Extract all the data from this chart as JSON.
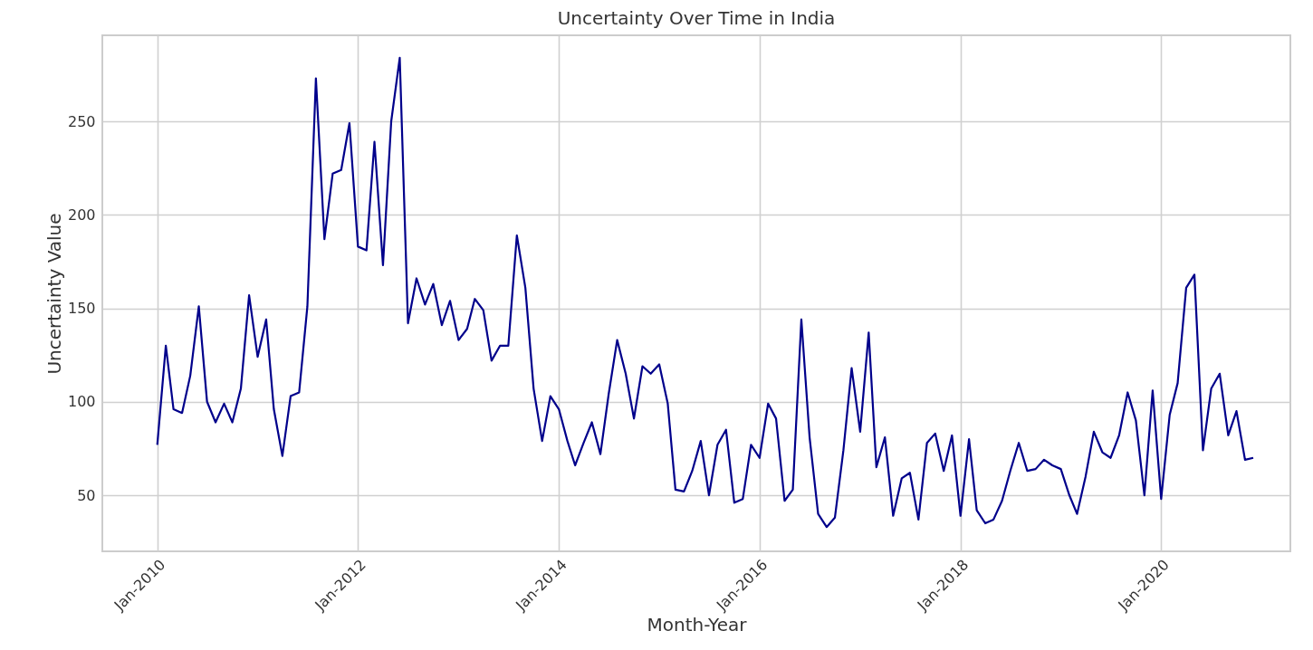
{
  "chart_data": {
    "type": "line",
    "title": "Uncertainty Over Time in India",
    "xlabel": "Month-Year",
    "ylabel": "Uncertainty Value",
    "x": [
      "2010-01",
      "2010-02",
      "2010-03",
      "2010-04",
      "2010-05",
      "2010-06",
      "2010-07",
      "2010-08",
      "2010-09",
      "2010-10",
      "2010-11",
      "2010-12",
      "2011-01",
      "2011-02",
      "2011-03",
      "2011-04",
      "2011-05",
      "2011-06",
      "2011-07",
      "2011-08",
      "2011-09",
      "2011-10",
      "2011-11",
      "2011-12",
      "2012-01",
      "2012-02",
      "2012-03",
      "2012-04",
      "2012-05",
      "2012-06",
      "2012-07",
      "2012-08",
      "2012-09",
      "2012-10",
      "2012-11",
      "2012-12",
      "2013-01",
      "2013-02",
      "2013-03",
      "2013-04",
      "2013-05",
      "2013-06",
      "2013-07",
      "2013-08",
      "2013-09",
      "2013-10",
      "2013-11",
      "2013-12",
      "2014-01",
      "2014-02",
      "2014-03",
      "2014-04",
      "2014-05",
      "2014-06",
      "2014-07",
      "2014-08",
      "2014-09",
      "2014-10",
      "2014-11",
      "2014-12",
      "2015-01",
      "2015-02",
      "2015-03",
      "2015-04",
      "2015-05",
      "2015-06",
      "2015-07",
      "2015-08",
      "2015-09",
      "2015-10",
      "2015-11",
      "2015-12",
      "2016-01",
      "2016-02",
      "2016-03",
      "2016-04",
      "2016-05",
      "2016-06",
      "2016-07",
      "2016-08",
      "2016-09",
      "2016-10",
      "2016-11",
      "2016-12",
      "2017-01",
      "2017-02",
      "2017-03",
      "2017-04",
      "2017-05",
      "2017-06",
      "2017-07",
      "2017-08",
      "2017-09",
      "2017-10",
      "2017-11",
      "2017-12",
      "2018-01",
      "2018-02",
      "2018-03",
      "2018-04",
      "2018-05",
      "2018-06",
      "2018-07",
      "2018-08",
      "2018-09",
      "2018-10",
      "2018-11",
      "2018-12",
      "2019-01",
      "2019-02",
      "2019-03",
      "2019-04",
      "2019-05",
      "2019-06",
      "2019-07",
      "2019-08",
      "2019-09",
      "2019-10",
      "2019-11",
      "2019-12",
      "2020-01",
      "2020-02",
      "2020-03",
      "2020-04",
      "2020-05",
      "2020-06",
      "2020-07",
      "2020-08",
      "2020-09",
      "2020-10",
      "2020-11",
      "2020-12"
    ],
    "series": [
      {
        "color": "#00008b",
        "values": [
          77,
          130,
          96,
          94,
          114,
          151,
          100,
          89,
          99,
          89,
          107,
          157,
          124,
          144,
          96,
          71,
          103,
          105,
          151,
          273,
          187,
          222,
          224,
          249,
          183,
          181,
          239,
          173,
          250,
          284,
          142,
          166,
          152,
          163,
          141,
          154,
          133,
          139,
          155,
          149,
          122,
          130,
          130,
          189,
          161,
          107,
          79,
          103,
          96,
          79,
          66,
          78,
          89,
          72,
          104,
          133,
          115,
          91,
          119,
          115,
          120,
          99,
          53,
          52,
          63,
          79,
          50,
          77,
          85,
          46,
          48,
          77,
          70,
          99,
          91,
          47,
          53,
          144,
          81,
          40,
          33,
          38,
          74,
          118,
          84,
          137,
          65,
          81,
          39,
          59,
          62,
          37,
          78,
          83,
          63,
          82,
          39,
          80,
          42,
          35,
          37,
          47,
          63,
          78,
          63,
          64,
          69,
          66,
          64,
          50,
          40,
          60,
          84,
          73,
          70,
          82,
          105,
          90,
          50,
          106,
          48,
          93,
          110,
          161,
          168,
          74,
          107,
          115,
          82,
          95,
          69,
          70
        ]
      }
    ],
    "xlim": [
      "2009-06-15",
      "2021-04-15"
    ],
    "xticks": [
      {
        "value": "2010-01",
        "label": "Jan-2010"
      },
      {
        "value": "2012-01",
        "label": "Jan-2012"
      },
      {
        "value": "2014-01",
        "label": "Jan-2014"
      },
      {
        "value": "2016-01",
        "label": "Jan-2016"
      },
      {
        "value": "2018-01",
        "label": "Jan-2018"
      },
      {
        "value": "2020-01",
        "label": "Jan-2020"
      }
    ],
    "ylim": [
      20,
      296
    ],
    "yticks": [
      50,
      100,
      150,
      200,
      250
    ],
    "grid": true,
    "line_style": "solid",
    "marker": "none"
  }
}
